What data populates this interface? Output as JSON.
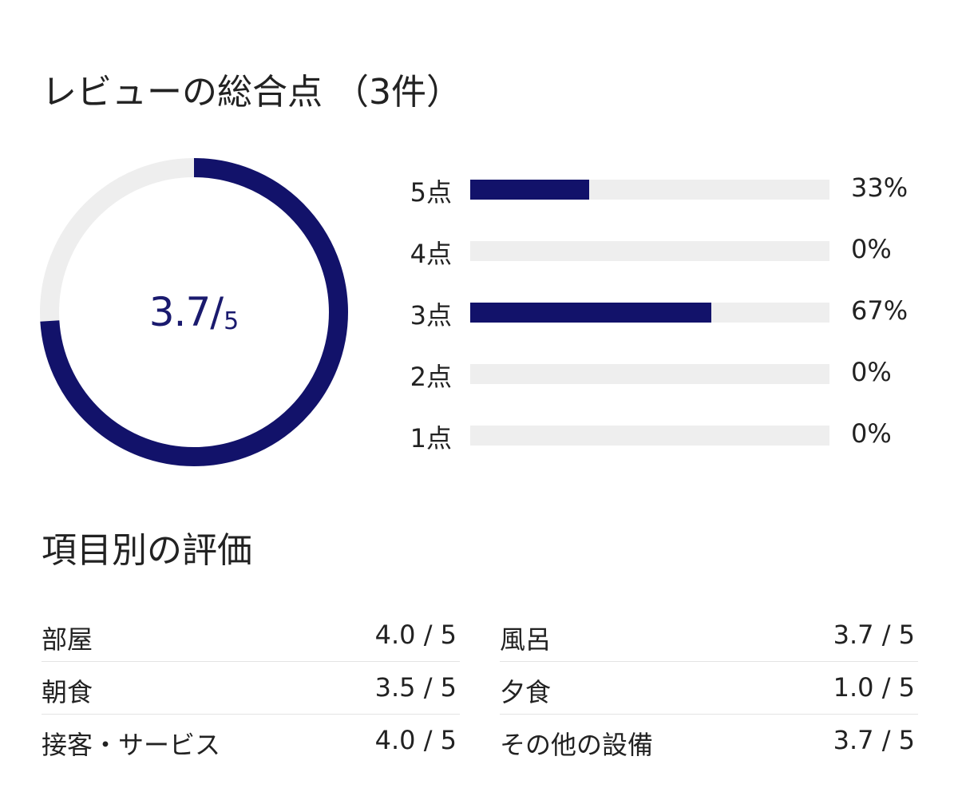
{
  "overall": {
    "title": "レビューの総合点 （3件）",
    "score": "3.7",
    "slash": "/",
    "max": "5",
    "ratio": 0.74,
    "colors": {
      "ring": "#12126a",
      "track": "#eeeeee"
    }
  },
  "distribution": [
    {
      "label": "5点",
      "percent_text": "33%",
      "percent": 33
    },
    {
      "label": "4点",
      "percent_text": "0%",
      "percent": 0
    },
    {
      "label": "3点",
      "percent_text": "67%",
      "percent": 67
    },
    {
      "label": "2点",
      "percent_text": "0%",
      "percent": 0
    },
    {
      "label": "1点",
      "percent_text": "0%",
      "percent": 0
    }
  ],
  "categories": {
    "title": "項目別の評価",
    "items": [
      {
        "name": "部屋",
        "value": "4.0 / 5"
      },
      {
        "name": "風呂",
        "value": "3.7 / 5"
      },
      {
        "name": "朝食",
        "value": "3.5 / 5"
      },
      {
        "name": "夕食",
        "value": "1.0 / 5"
      },
      {
        "name": "接客・サービス",
        "value": "4.0 / 5"
      },
      {
        "name": "その他の設備",
        "value": "3.7 / 5"
      }
    ]
  }
}
